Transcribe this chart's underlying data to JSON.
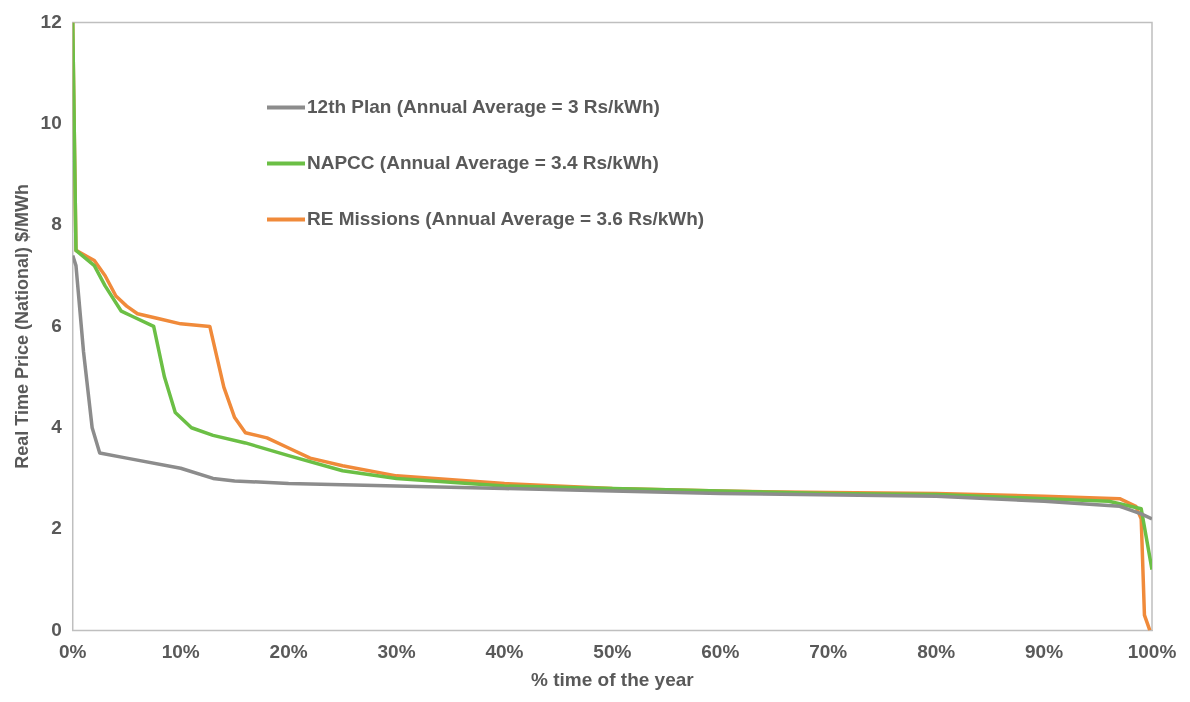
{
  "chart_data": {
    "type": "line",
    "xlabel": "% time of the year",
    "ylabel": "Real Time Price (National) $/MWh",
    "xlim": [
      0,
      100
    ],
    "ylim": [
      0,
      12
    ],
    "xticks": [
      {
        "value": 0,
        "label": "0%"
      },
      {
        "value": 10,
        "label": "10%"
      },
      {
        "value": 20,
        "label": "20%"
      },
      {
        "value": 30,
        "label": "30%"
      },
      {
        "value": 40,
        "label": "40%"
      },
      {
        "value": 50,
        "label": "50%"
      },
      {
        "value": 60,
        "label": "60%"
      },
      {
        "value": 70,
        "label": "70%"
      },
      {
        "value": 80,
        "label": "80%"
      },
      {
        "value": 90,
        "label": "90%"
      },
      {
        "value": 100,
        "label": "100%"
      }
    ],
    "yticks": [
      0,
      2,
      4,
      6,
      8,
      10,
      12
    ],
    "grid": false,
    "legend": "top",
    "marker": "none",
    "line_style": "solid",
    "series": [
      {
        "name": "12th Plan (Annual Average = 3 Rs/kWh)",
        "color": "#8c8c8c",
        "x": [
          0,
          0.3,
          1,
          1.8,
          2.5,
          5,
          10,
          13,
          15,
          20,
          30,
          40,
          50,
          60,
          80,
          90,
          97,
          99,
          100
        ],
        "values": [
          7.4,
          7.2,
          5.5,
          4.0,
          3.5,
          3.4,
          3.2,
          3.0,
          2.95,
          2.9,
          2.85,
          2.8,
          2.75,
          2.7,
          2.65,
          2.55,
          2.45,
          2.3,
          2.2
        ]
      },
      {
        "name": "NAPCC (Annual Average = 3.4 Rs/kWh)",
        "color": "#6bbf45",
        "x": [
          0,
          0.3,
          2,
          3,
          4.5,
          5.5,
          7.5,
          8.5,
          9.5,
          11,
          13,
          16,
          20,
          25,
          30,
          40,
          50,
          60,
          70,
          80,
          90,
          96,
          99,
          100
        ],
        "values": [
          12,
          7.5,
          7.2,
          6.8,
          6.3,
          6.2,
          6.0,
          5.0,
          4.3,
          4.0,
          3.85,
          3.7,
          3.45,
          3.15,
          3.0,
          2.85,
          2.8,
          2.75,
          2.7,
          2.68,
          2.6,
          2.55,
          2.4,
          1.2
        ]
      },
      {
        "name": "RE Missions (Annual Average = 3.6 Rs/kWh)",
        "color": "#f08a3a",
        "x": [
          0,
          0.3,
          2,
          3,
          4,
          5,
          6,
          8,
          10,
          12.7,
          14,
          15,
          16,
          18,
          20,
          22,
          25,
          30,
          40,
          50,
          60,
          70,
          80,
          90,
          97,
          98.5,
          99,
          99.3,
          99.8
        ],
        "values": [
          12,
          7.5,
          7.3,
          7.0,
          6.6,
          6.4,
          6.25,
          6.15,
          6.05,
          6.0,
          4.8,
          4.2,
          3.9,
          3.8,
          3.6,
          3.4,
          3.25,
          3.05,
          2.9,
          2.8,
          2.75,
          2.72,
          2.7,
          2.65,
          2.6,
          2.45,
          2.2,
          0.3,
          0
        ]
      }
    ]
  }
}
